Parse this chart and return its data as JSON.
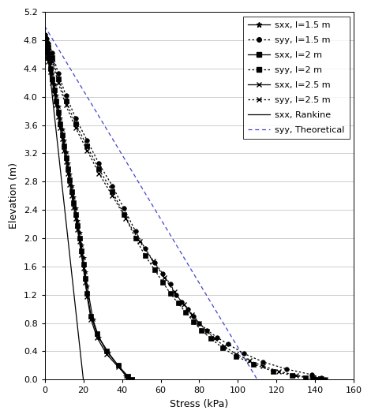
{
  "xlabel": "Stress (kPa)",
  "ylabel": "Elevation (m)",
  "xlim": [
    0,
    160
  ],
  "ylim": [
    0,
    5.2
  ],
  "xticks": [
    0,
    20,
    40,
    60,
    80,
    100,
    120,
    140,
    160
  ],
  "yticks": [
    0,
    0.4,
    0.8,
    1.2,
    1.6,
    2.0,
    2.4,
    2.8,
    3.2,
    3.6,
    4.0,
    4.4,
    4.8,
    5.2
  ],
  "rankine_sxx": {
    "stress": [
      0,
      20
    ],
    "elev": [
      5.0,
      0.0
    ]
  },
  "theoretical_syy": {
    "stress": [
      0,
      110
    ],
    "elev": [
      5.0,
      0.0
    ]
  },
  "sxx_l15": {
    "stress": [
      0,
      0.5,
      1,
      1.5,
      2,
      3,
      4,
      5,
      6,
      7,
      8,
      9,
      10,
      11,
      12,
      13,
      14,
      15,
      16,
      17,
      18,
      19,
      20,
      21,
      22,
      25,
      28,
      33,
      38,
      42,
      44
    ],
    "elev": [
      4.88,
      4.82,
      4.76,
      4.7,
      4.62,
      4.48,
      4.33,
      4.18,
      4.02,
      3.86,
      3.7,
      3.54,
      3.38,
      3.22,
      3.06,
      2.9,
      2.74,
      2.58,
      2.42,
      2.25,
      2.08,
      1.9,
      1.72,
      1.52,
      1.32,
      0.85,
      0.6,
      0.38,
      0.2,
      0.05,
      0.0
    ]
  },
  "syy_l15": {
    "stress": [
      0,
      1,
      2,
      4,
      7,
      11,
      16,
      22,
      28,
      35,
      41,
      47,
      52,
      57,
      61,
      65,
      68,
      71,
      74,
      77,
      80,
      84,
      89,
      95,
      103,
      113,
      125,
      138,
      143,
      145
    ],
    "elev": [
      4.88,
      4.82,
      4.76,
      4.62,
      4.33,
      4.02,
      3.7,
      3.38,
      3.06,
      2.74,
      2.42,
      2.1,
      1.85,
      1.65,
      1.5,
      1.35,
      1.2,
      1.1,
      1.0,
      0.9,
      0.8,
      0.7,
      0.6,
      0.5,
      0.37,
      0.25,
      0.15,
      0.07,
      0.03,
      0.0
    ]
  },
  "sxx_l2": {
    "stress": [
      0,
      0.5,
      1,
      1.5,
      2,
      3,
      4,
      5,
      6,
      7,
      8,
      9,
      10,
      11,
      12,
      13,
      14,
      15,
      16,
      17,
      18,
      19,
      20,
      21,
      22,
      24,
      27,
      32,
      38,
      43,
      45
    ],
    "elev": [
      4.82,
      4.76,
      4.7,
      4.63,
      4.55,
      4.4,
      4.25,
      4.1,
      3.94,
      3.78,
      3.62,
      3.46,
      3.3,
      3.14,
      2.98,
      2.82,
      2.66,
      2.5,
      2.34,
      2.18,
      2.0,
      1.82,
      1.63,
      1.43,
      1.22,
      0.9,
      0.65,
      0.4,
      0.2,
      0.05,
      0.0
    ]
  },
  "syy_l2": {
    "stress": [
      0,
      1,
      2,
      4,
      7,
      11,
      16,
      22,
      28,
      35,
      41,
      47,
      52,
      57,
      61,
      65,
      69,
      73,
      77,
      81,
      86,
      92,
      99,
      108,
      118,
      128,
      135,
      139,
      141
    ],
    "elev": [
      4.82,
      4.76,
      4.7,
      4.55,
      4.25,
      3.94,
      3.62,
      3.3,
      2.98,
      2.66,
      2.34,
      2.0,
      1.75,
      1.55,
      1.38,
      1.22,
      1.08,
      0.95,
      0.82,
      0.7,
      0.58,
      0.45,
      0.33,
      0.22,
      0.12,
      0.06,
      0.03,
      0.01,
      0.0
    ]
  },
  "sxx_l25": {
    "stress": [
      0,
      0.5,
      1,
      1.5,
      2,
      3,
      4,
      5,
      6,
      7,
      8,
      9,
      10,
      11,
      12,
      13,
      14,
      15,
      16,
      17,
      18,
      19,
      20,
      21,
      22,
      24,
      27,
      32,
      38,
      43,
      45
    ],
    "elev": [
      4.78,
      4.72,
      4.65,
      4.58,
      4.5,
      4.35,
      4.2,
      4.04,
      3.88,
      3.72,
      3.56,
      3.4,
      3.24,
      3.08,
      2.92,
      2.76,
      2.6,
      2.44,
      2.28,
      2.12,
      1.95,
      1.77,
      1.58,
      1.38,
      1.17,
      0.85,
      0.6,
      0.36,
      0.18,
      0.04,
      0.0
    ]
  },
  "syy_l25": {
    "stress": [
      0,
      1,
      2,
      4,
      7,
      11,
      16,
      22,
      28,
      35,
      42,
      49,
      56,
      62,
      67,
      72,
      76,
      80,
      84,
      88,
      93,
      99,
      106,
      113,
      121,
      130,
      138,
      143,
      145
    ],
    "elev": [
      4.78,
      4.72,
      4.65,
      4.5,
      4.2,
      3.88,
      3.56,
      3.24,
      2.92,
      2.6,
      2.28,
      1.96,
      1.68,
      1.44,
      1.24,
      1.06,
      0.92,
      0.8,
      0.68,
      0.58,
      0.47,
      0.36,
      0.27,
      0.19,
      0.12,
      0.06,
      0.03,
      0.01,
      0.0
    ]
  },
  "legend_fontsize": 8,
  "tick_fontsize": 8,
  "label_fontsize": 9
}
